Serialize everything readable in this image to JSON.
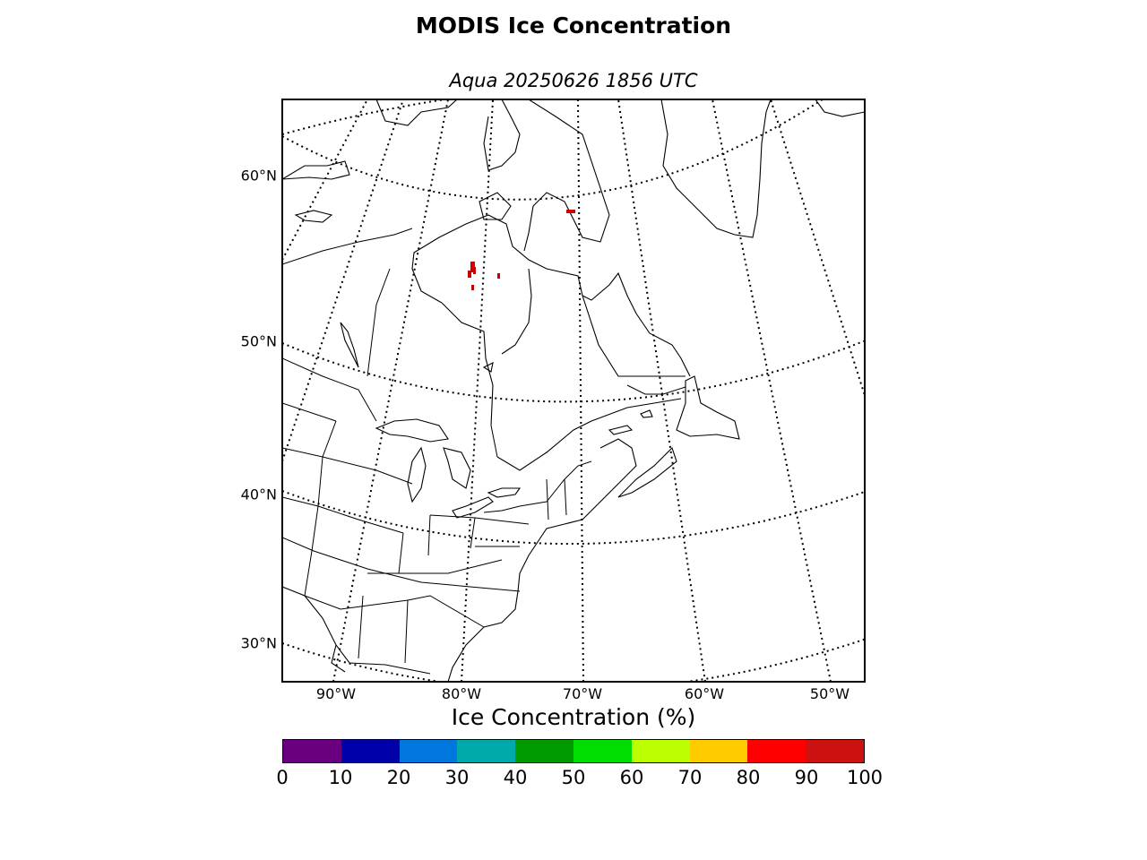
{
  "title": "MODIS Ice Concentration",
  "subtitle": "Aqua 20250626 1856 UTC",
  "lat_labels": [
    "60°N",
    "50°N",
    "40°N",
    "30°N"
  ],
  "lon_labels": [
    "90°W",
    "80°W",
    "70°W",
    "60°W",
    "50°W"
  ],
  "colorbar": {
    "title": "Ice Concentration (%)",
    "ticks": [
      "0",
      "10",
      "20",
      "30",
      "40",
      "50",
      "60",
      "70",
      "80",
      "90",
      "100"
    ],
    "colors": [
      "#6a0080",
      "#0000aa",
      "#0077dd",
      "#00aaaa",
      "#009900",
      "#00dd00",
      "#bbff00",
      "#ffcc00",
      "#ff0000",
      "#cc1111"
    ]
  },
  "ice_color": "#cc0000"
}
